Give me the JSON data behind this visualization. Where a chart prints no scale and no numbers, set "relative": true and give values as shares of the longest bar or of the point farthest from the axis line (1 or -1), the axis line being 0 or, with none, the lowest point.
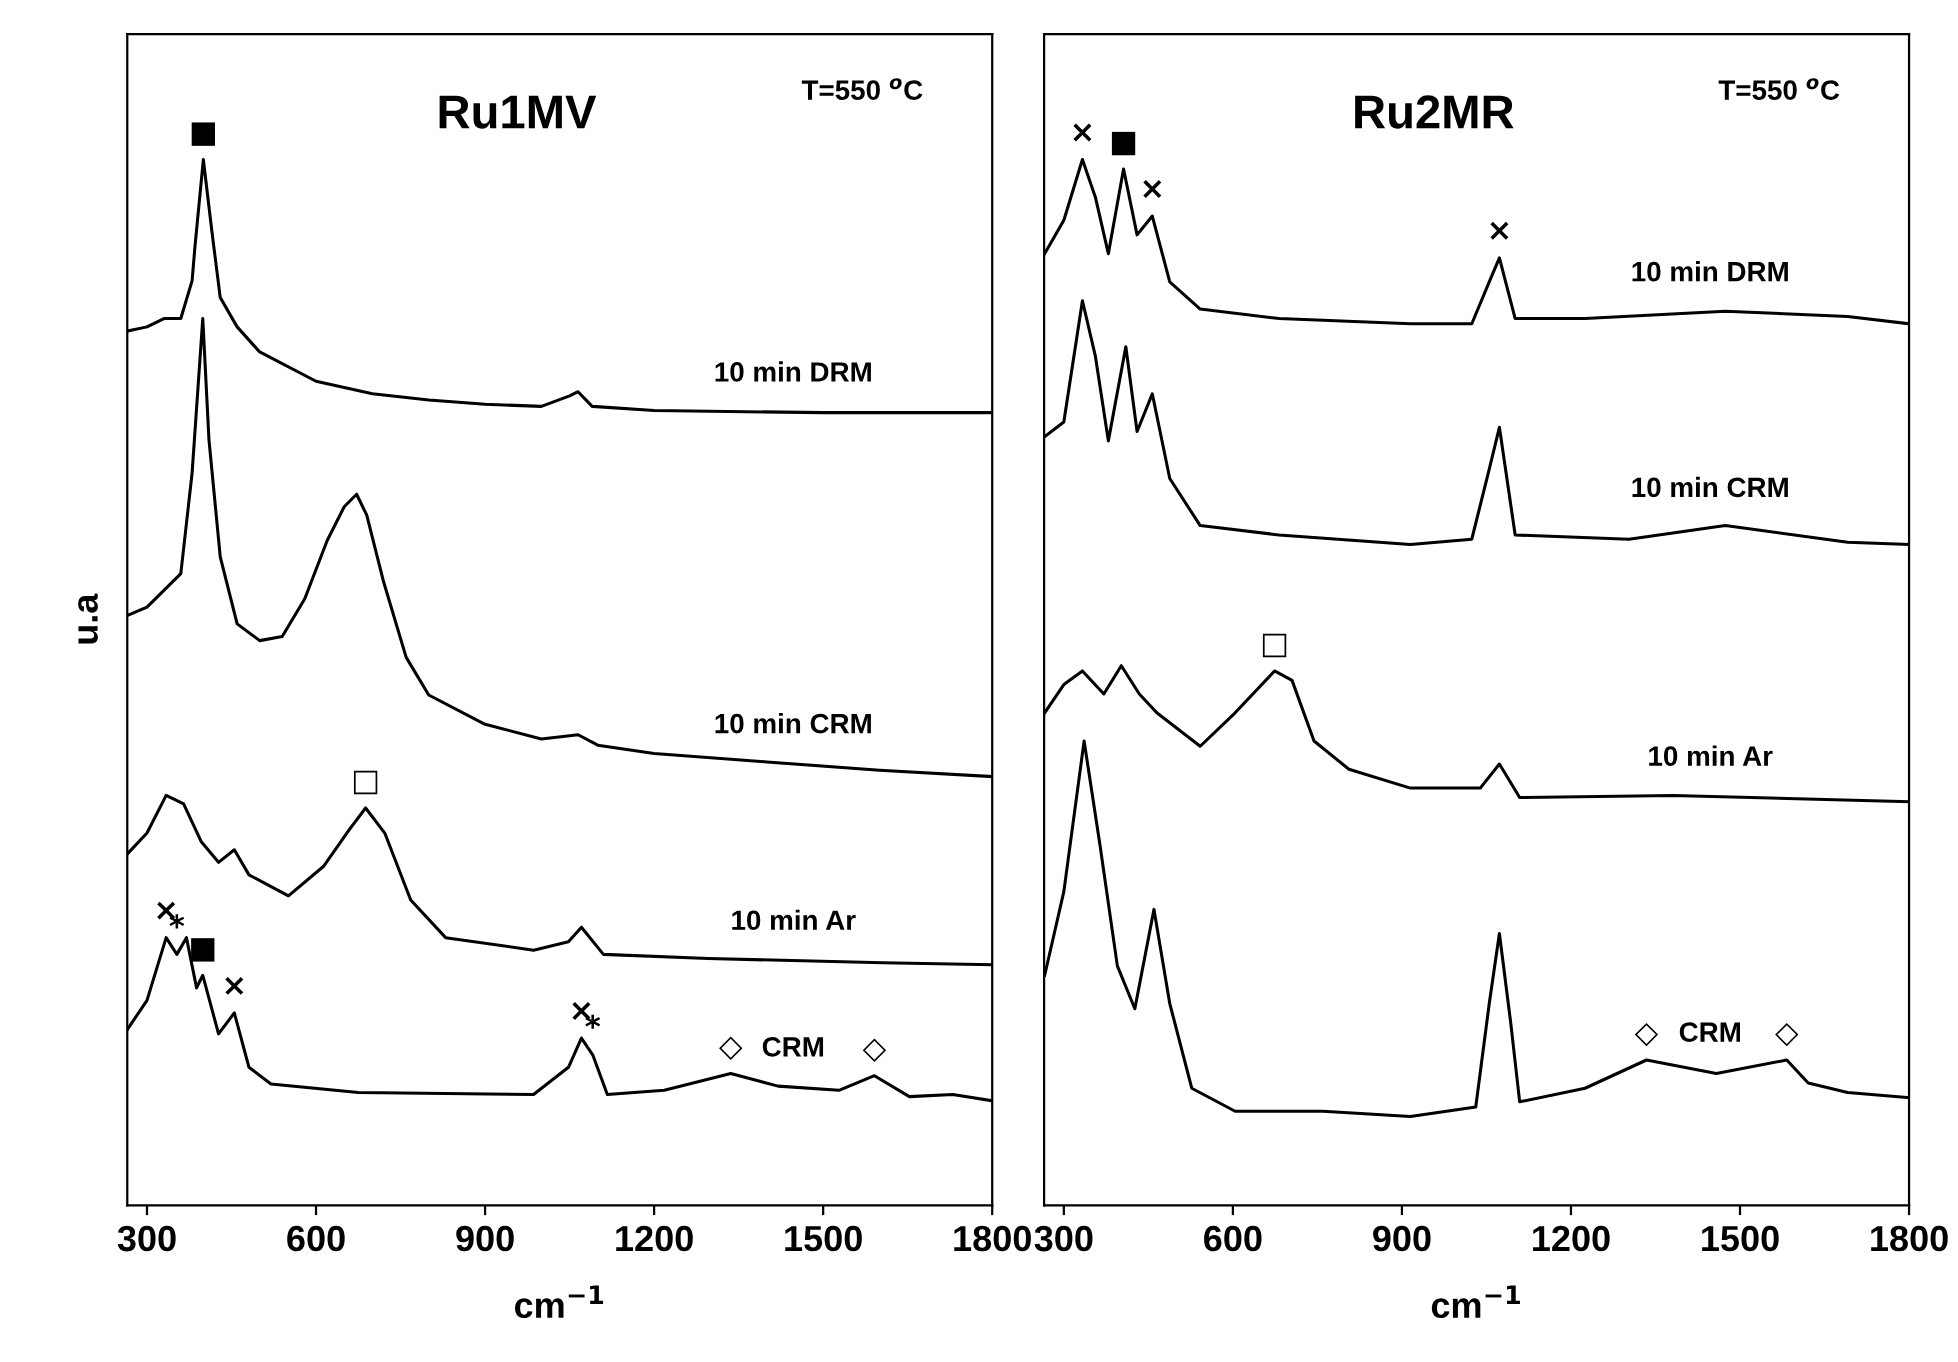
{
  "chart_data": [
    {
      "type": "line",
      "title": "Ru1MV",
      "xlabel": "cm$^{−1}$",
      "ylabel": "u.a",
      "relative": true,
      "xlim": [
        265,
        1800
      ],
      "xticks": [
        300,
        600,
        900,
        1200,
        1500,
        1800
      ],
      "tick_labels": "x",
      "grid": false,
      "legend": false,
      "annotations": [
        "T=550 $^{o}$C",
        {
          "text": "■",
          "x": 400,
          "y": 1.0
        },
        {
          "text": "×",
          "x": 334,
          "y": 0.256
        },
        {
          "text": "*",
          "x": 353,
          "y": 0.24
        },
        {
          "text": "■",
          "x": 399,
          "y": 0.22
        },
        {
          "text": "×",
          "x": 455,
          "y": 0.184
        },
        {
          "text": "×",
          "x": 1071,
          "y": 0.16
        },
        {
          "text": "*",
          "x": 1091,
          "y": 0.144
        },
        {
          "text": "◇",
          "x": 1336,
          "y": 0.126
        },
        {
          "text": "◇",
          "x": 1591,
          "y": 0.124
        },
        {
          "text": "□",
          "x": 688,
          "y": 0.38
        }
      ],
      "series": [
        {
          "name": "10 min DRM",
          "color": "#000000",
          "x": [
            265,
            300,
            330,
            360,
            380,
            385,
            400,
            415,
            430,
            460,
            500,
            600,
            700,
            800,
            900,
            1000,
            1050,
            1065,
            1090,
            1200,
            1500,
            1800
          ],
          "values": [
            0.836,
            0.84,
            0.848,
            0.848,
            0.884,
            0.916,
            1.0,
            0.932,
            0.868,
            0.84,
            0.816,
            0.788,
            0.776,
            0.77,
            0.766,
            0.764,
            0.774,
            0.778,
            0.764,
            0.76,
            0.758,
            0.758
          ]
        },
        {
          "name": "10 min CRM",
          "color": "#000000",
          "x": [
            265,
            300,
            330,
            360,
            380,
            399,
            410,
            430,
            460,
            500,
            540,
            580,
            620,
            650,
            672,
            690,
            720,
            760,
            800,
            900,
            1000,
            1065,
            1100,
            1200,
            1400,
            1600,
            1800
          ],
          "values": [
            0.564,
            0.572,
            0.588,
            0.604,
            0.7,
            0.848,
            0.732,
            0.62,
            0.556,
            0.54,
            0.544,
            0.58,
            0.636,
            0.668,
            0.68,
            0.66,
            0.596,
            0.524,
            0.488,
            0.46,
            0.446,
            0.45,
            0.44,
            0.432,
            0.424,
            0.416,
            0.41
          ]
        },
        {
          "name": "10 min Ar",
          "color": "#000000",
          "x": [
            265,
            300,
            334,
            365,
            396,
            427,
            455,
            481,
            551,
            613,
            660,
            688,
            722,
            768,
            830,
            986,
            1048,
            1071,
            1110,
            1296,
            1606,
            1800
          ],
          "values": [
            0.336,
            0.356,
            0.392,
            0.384,
            0.348,
            0.328,
            0.34,
            0.316,
            0.296,
            0.324,
            0.36,
            0.38,
            0.356,
            0.292,
            0.256,
            0.244,
            0.252,
            0.266,
            0.24,
            0.236,
            0.232,
            0.23
          ]
        },
        {
          "name": "CRM",
          "color": "#000000",
          "x": [
            265,
            300,
            334,
            353,
            370,
            388,
            399,
            427,
            455,
            481,
            520,
            675,
            986,
            1048,
            1071,
            1091,
            1117,
            1218,
            1336,
            1420,
            1528,
            1591,
            1653,
            1730,
            1800
          ],
          "values": [
            0.168,
            0.196,
            0.256,
            0.24,
            0.256,
            0.208,
            0.22,
            0.164,
            0.184,
            0.132,
            0.116,
            0.108,
            0.106,
            0.132,
            0.16,
            0.144,
            0.106,
            0.11,
            0.126,
            0.114,
            0.11,
            0.124,
            0.104,
            0.106,
            0.1
          ]
        }
      ]
    },
    {
      "type": "line",
      "title": "Ru2MR",
      "xlabel": "cm$^{−1}$",
      "relative": true,
      "xlim": [
        265,
        1800
      ],
      "xticks": [
        300,
        600,
        900,
        1200,
        1500,
        1800
      ],
      "tick_labels": "x",
      "grid": false,
      "legend": false,
      "annotations": [
        "T=550 $^{o}$C",
        {
          "text": "×",
          "x": 333,
          "y": 1.0
        },
        {
          "text": "■",
          "x": 406,
          "y": 0.991
        },
        {
          "text": "×",
          "x": 457,
          "y": 0.946
        },
        {
          "text": "×",
          "x": 1073,
          "y": 0.906
        },
        {
          "text": "□",
          "x": 674,
          "y": 0.511
        },
        {
          "text": "◇",
          "x": 1334,
          "y": 0.139
        },
        {
          "text": "◇",
          "x": 1583,
          "y": 0.139
        }
      ],
      "series": [
        {
          "name": "10 min DRM",
          "color": "#000000",
          "x": [
            266,
            300,
            333,
            356,
            379,
            406,
            430,
            457,
            488,
            542,
            682,
            915,
            1024,
            1055,
            1073,
            1101,
            1225,
            1474,
            1691,
            1800
          ],
          "values": [
            0.91,
            0.942,
            1.0,
            0.964,
            0.91,
            0.991,
            0.928,
            0.946,
            0.883,
            0.857,
            0.848,
            0.843,
            0.843,
            0.883,
            0.906,
            0.848,
            0.848,
            0.855,
            0.85,
            0.843
          ]
        },
        {
          "name": "10 min CRM",
          "color": "#000000",
          "x": [
            266,
            300,
            333,
            356,
            379,
            410,
            430,
            457,
            488,
            542,
            682,
            915,
            1024,
            1055,
            1073,
            1101,
            1303,
            1474,
            1691,
            1800
          ],
          "values": [
            0.735,
            0.749,
            0.865,
            0.812,
            0.731,
            0.821,
            0.74,
            0.776,
            0.695,
            0.65,
            0.641,
            0.632,
            0.637,
            0.704,
            0.744,
            0.641,
            0.637,
            0.65,
            0.634,
            0.632
          ]
        },
        {
          "name": "10 min Ar",
          "color": "#000000",
          "x": [
            266,
            300,
            333,
            371,
            402,
            434,
            465,
            542,
            604,
            674,
            705,
            744,
            806,
            915,
            1039,
            1073,
            1109,
            1381,
            1800
          ],
          "values": [
            0.471,
            0.498,
            0.511,
            0.489,
            0.516,
            0.489,
            0.471,
            0.439,
            0.471,
            0.511,
            0.502,
            0.444,
            0.417,
            0.399,
            0.399,
            0.422,
            0.39,
            0.392,
            0.386
          ]
        },
        {
          "name": "CRM",
          "color": "#000000",
          "x": [
            266,
            300,
            336,
            364,
            395,
            426,
            460,
            488,
            527,
            604,
            760,
            915,
            1031,
            1055,
            1073,
            1093,
            1109,
            1225,
            1334,
            1458,
            1583,
            1621,
            1691,
            1800
          ],
          "values": [
            0.22,
            0.3,
            0.444,
            0.345,
            0.229,
            0.188,
            0.283,
            0.193,
            0.112,
            0.09,
            0.09,
            0.085,
            0.094,
            0.193,
            0.26,
            0.175,
            0.099,
            0.112,
            0.139,
            0.126,
            0.139,
            0.117,
            0.108,
            0.103
          ]
        }
      ]
    }
  ]
}
